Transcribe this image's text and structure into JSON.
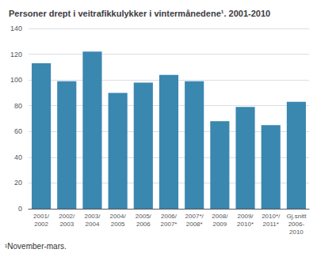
{
  "chart_data": {
    "type": "bar",
    "title": "Personer drept i veitrafikkulykker i vintermånedene¹. 2001-2010",
    "footnote": "¹November-mars.",
    "categories": [
      "2001/\n2002",
      "2002/\n2003",
      "2003/\n2004",
      "2004/\n2005",
      "2005/\n2006",
      "2006/\n2007*",
      "2007*/\n2008*",
      "2008/\n2009",
      "2009/\n2010*",
      "2010*/\n2011*",
      "Gj.snitt\n2006-\n2010"
    ],
    "values": [
      113,
      99,
      122,
      90,
      98,
      104,
      99,
      68,
      79,
      65,
      83
    ],
    "color": "#3a87b0",
    "ylim": [
      0,
      140
    ],
    "yticks": [
      0,
      20,
      40,
      60,
      80,
      100,
      120,
      140
    ],
    "grid": true
  }
}
